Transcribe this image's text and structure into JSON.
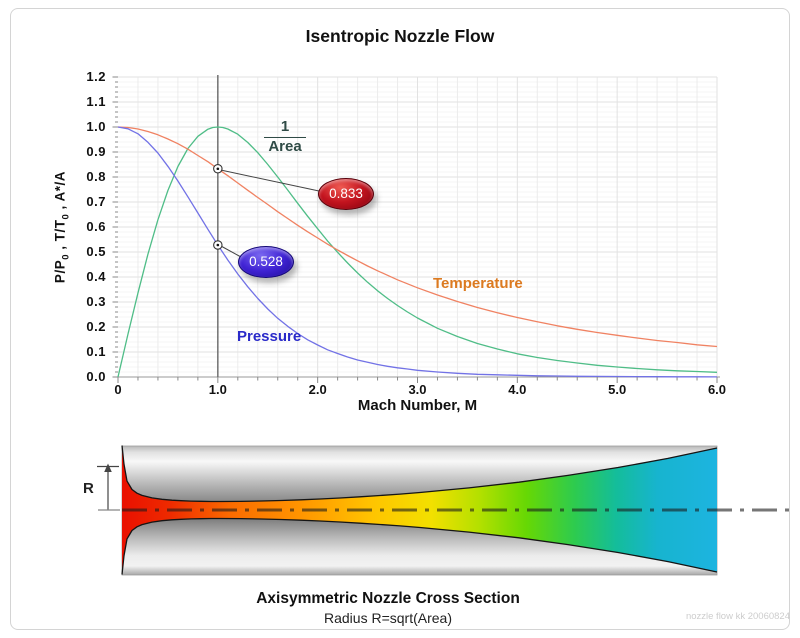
{
  "page": {
    "watermark": "nozzle flow kk 20060824"
  },
  "title": "Isentropic Nozzle Flow",
  "chart": {
    "xlabel": "Mach Number, M",
    "ylabel_parts": {
      "seg1": "P/P",
      "sub1": "0",
      "seg2": " ,  T/T",
      "sub2": "0",
      "seg3": " ,  A*/A"
    },
    "x_ticks": [
      "0",
      "1.0",
      "2.0",
      "3.0",
      "4.0",
      "5.0",
      "6.0"
    ],
    "y_ticks": [
      "0.0",
      "0.1",
      "0.2",
      "0.3",
      "0.4",
      "0.5",
      "0.6",
      "0.7",
      "0.8",
      "0.9",
      "1.0",
      "1.1",
      "1.2"
    ],
    "curve_labels": {
      "area_num": "1",
      "area_den": "Area",
      "temperature": "Temperature",
      "pressure": "Pressure"
    }
  },
  "chart_data": {
    "type": "line",
    "title": "Isentropic Nozzle Flow",
    "xlabel": "Mach Number, M",
    "ylabel": "P/P0 , T/T0 , A*/A",
    "xlim": [
      0,
      6
    ],
    "ylim": [
      0,
      1.2
    ],
    "x_major_tick": 1.0,
    "x_minor_tick": 0.2,
    "y_major_tick": 0.1,
    "y_minor_tick": 0.02,
    "grid": true,
    "guide_line_x": 1.0,
    "series": [
      {
        "name": "1/Area (A*/A)",
        "color": "#4fbd87",
        "points": [
          [
            0,
            0
          ],
          [
            0.02,
            0.035
          ],
          [
            0.05,
            0.086
          ],
          [
            0.1,
            0.172
          ],
          [
            0.2,
            0.337
          ],
          [
            0.3,
            0.491
          ],
          [
            0.4,
            0.629
          ],
          [
            0.5,
            0.746
          ],
          [
            0.6,
            0.842
          ],
          [
            0.7,
            0.914
          ],
          [
            0.8,
            0.963
          ],
          [
            0.9,
            0.991
          ],
          [
            0.95,
            0.998
          ],
          [
            1,
            1.0
          ],
          [
            1.05,
            0.998
          ],
          [
            1.1,
            0.992
          ],
          [
            1.2,
            0.971
          ],
          [
            1.3,
            0.938
          ],
          [
            1.4,
            0.897
          ],
          [
            1.5,
            0.85
          ],
          [
            1.6,
            0.8
          ],
          [
            1.7,
            0.748
          ],
          [
            1.8,
            0.695
          ],
          [
            1.9,
            0.643
          ],
          [
            2,
            0.593
          ],
          [
            2.1,
            0.544
          ],
          [
            2.2,
            0.499
          ],
          [
            2.3,
            0.456
          ],
          [
            2.4,
            0.416
          ],
          [
            2.5,
            0.379
          ],
          [
            2.6,
            0.345
          ],
          [
            2.7,
            0.314
          ],
          [
            2.8,
            0.286
          ],
          [
            2.9,
            0.26
          ],
          [
            3,
            0.236
          ],
          [
            3.2,
            0.195
          ],
          [
            3.4,
            0.162
          ],
          [
            3.6,
            0.134
          ],
          [
            3.8,
            0.112
          ],
          [
            4,
            0.093
          ],
          [
            4.2,
            0.078
          ],
          [
            4.4,
            0.066
          ],
          [
            4.6,
            0.056
          ],
          [
            4.8,
            0.047
          ],
          [
            5,
            0.04
          ],
          [
            5.2,
            0.034
          ],
          [
            5.4,
            0.029
          ],
          [
            5.6,
            0.025
          ],
          [
            5.8,
            0.022
          ],
          [
            6,
            0.019
          ]
        ]
      },
      {
        "name": "Temperature (T/T0)",
        "color": "#f08262",
        "points": [
          [
            0,
            1.0
          ],
          [
            0.1,
            0.998
          ],
          [
            0.2,
            0.992
          ],
          [
            0.3,
            0.982
          ],
          [
            0.4,
            0.969
          ],
          [
            0.5,
            0.952
          ],
          [
            0.6,
            0.933
          ],
          [
            0.7,
            0.911
          ],
          [
            0.8,
            0.886
          ],
          [
            0.9,
            0.861
          ],
          [
            1,
            0.833
          ],
          [
            1.1,
            0.805
          ],
          [
            1.2,
            0.776
          ],
          [
            1.3,
            0.747
          ],
          [
            1.4,
            0.718
          ],
          [
            1.5,
            0.69
          ],
          [
            1.6,
            0.661
          ],
          [
            1.7,
            0.634
          ],
          [
            1.8,
            0.607
          ],
          [
            1.9,
            0.581
          ],
          [
            2,
            0.556
          ],
          [
            2.1,
            0.531
          ],
          [
            2.2,
            0.508
          ],
          [
            2.3,
            0.486
          ],
          [
            2.4,
            0.465
          ],
          [
            2.5,
            0.444
          ],
          [
            2.6,
            0.425
          ],
          [
            2.7,
            0.407
          ],
          [
            2.8,
            0.389
          ],
          [
            2.9,
            0.373
          ],
          [
            3,
            0.357
          ],
          [
            3.2,
            0.328
          ],
          [
            3.4,
            0.302
          ],
          [
            3.6,
            0.278
          ],
          [
            3.8,
            0.257
          ],
          [
            4,
            0.238
          ],
          [
            4.2,
            0.221
          ],
          [
            4.4,
            0.205
          ],
          [
            4.6,
            0.191
          ],
          [
            4.8,
            0.178
          ],
          [
            5,
            0.167
          ],
          [
            5.2,
            0.156
          ],
          [
            5.4,
            0.146
          ],
          [
            5.6,
            0.138
          ],
          [
            5.8,
            0.129
          ],
          [
            6,
            0.122
          ]
        ]
      },
      {
        "name": "Pressure (P/P0)",
        "color": "#7272e6",
        "points": [
          [
            0,
            1.0
          ],
          [
            0.1,
            0.993
          ],
          [
            0.2,
            0.973
          ],
          [
            0.3,
            0.939
          ],
          [
            0.4,
            0.896
          ],
          [
            0.5,
            0.843
          ],
          [
            0.6,
            0.784
          ],
          [
            0.7,
            0.721
          ],
          [
            0.8,
            0.656
          ],
          [
            0.9,
            0.591
          ],
          [
            1,
            0.528
          ],
          [
            1.1,
            0.468
          ],
          [
            1.2,
            0.412
          ],
          [
            1.3,
            0.361
          ],
          [
            1.4,
            0.314
          ],
          [
            1.5,
            0.272
          ],
          [
            1.6,
            0.235
          ],
          [
            1.7,
            0.203
          ],
          [
            1.8,
            0.174
          ],
          [
            1.9,
            0.149
          ],
          [
            2,
            0.128
          ],
          [
            2.1,
            0.109
          ],
          [
            2.2,
            0.094
          ],
          [
            2.3,
            0.08
          ],
          [
            2.4,
            0.068
          ],
          [
            2.5,
            0.059
          ],
          [
            2.6,
            0.05
          ],
          [
            2.7,
            0.043
          ],
          [
            2.8,
            0.037
          ],
          [
            2.9,
            0.032
          ],
          [
            3,
            0.027
          ],
          [
            3.2,
            0.02
          ],
          [
            3.4,
            0.015
          ],
          [
            3.6,
            0.011
          ],
          [
            3.8,
            0.009
          ],
          [
            4,
            0.007
          ],
          [
            4.2,
            0.005
          ],
          [
            4.4,
            0.004
          ],
          [
            4.6,
            0.003
          ],
          [
            4.8,
            0.0024
          ],
          [
            5,
            0.0019
          ],
          [
            5.2,
            0.0015
          ],
          [
            5.4,
            0.0012
          ],
          [
            5.6,
            0.001
          ],
          [
            5.8,
            0.0008
          ],
          [
            6,
            0.0006
          ]
        ]
      }
    ],
    "annotations": [
      {
        "label": "0.833",
        "x": 1.0,
        "y": 0.833,
        "series": "Temperature (T/T0)",
        "badge_color": "#c3141f"
      },
      {
        "label": "0.528",
        "x": 1.0,
        "y": 0.528,
        "series": "Pressure (P/P0)",
        "badge_color": "#4023d4"
      }
    ]
  },
  "nozzle": {
    "caption_line1": "Axisymmetric Nozzle Cross Section",
    "caption_line2": "Radius R=sqrt(Area)",
    "radius_label": "R",
    "flow_stops": [
      [
        0,
        "#ea1000"
      ],
      [
        0.08,
        "#ee2a00"
      ],
      [
        0.18,
        "#fb6a00"
      ],
      [
        0.3,
        "#ff9500"
      ],
      [
        0.42,
        "#ffc400"
      ],
      [
        0.52,
        "#f2e000"
      ],
      [
        0.6,
        "#b4e000"
      ],
      [
        0.68,
        "#66d804"
      ],
      [
        0.76,
        "#2ecb4e"
      ],
      [
        0.83,
        "#14bd9a"
      ],
      [
        0.9,
        "#17b4cf"
      ],
      [
        1,
        "#1db4e0"
      ]
    ],
    "body_stops": [
      [
        0,
        "#b9b9b9"
      ],
      [
        0.05,
        "#e2e2e2"
      ],
      [
        0.12,
        "#f8f8f8"
      ],
      [
        0.28,
        "#bdbdbd"
      ],
      [
        0.45,
        "#828282"
      ],
      [
        0.55,
        "#787878"
      ],
      [
        0.7,
        "#b5b5b5"
      ],
      [
        0.85,
        "#ececec"
      ],
      [
        0.93,
        "#f2f2f2"
      ],
      [
        1,
        "#a8a8a8"
      ]
    ],
    "profile": [
      [
        122,
        64.5
      ],
      [
        124,
        45.7
      ],
      [
        127,
        28.9
      ],
      [
        132,
        20.5
      ],
      [
        137,
        16.8
      ],
      [
        142,
        14.6
      ],
      [
        152,
        12.1
      ],
      [
        162,
        10.7
      ],
      [
        172,
        9.8
      ],
      [
        181,
        9.3
      ],
      [
        191,
        8.9
      ],
      [
        201,
        8.7
      ],
      [
        211,
        8.5
      ],
      [
        221,
        8.5
      ],
      [
        241,
        8.6
      ],
      [
        261,
        9.0
      ],
      [
        281,
        9.5
      ],
      [
        301,
        10.2
      ],
      [
        320,
        11.0
      ],
      [
        340,
        12.0
      ],
      [
        360,
        13.2
      ],
      [
        380,
        14.5
      ],
      [
        400,
        15.9
      ],
      [
        420,
        17.5
      ],
      [
        469,
        22.1
      ],
      [
        519,
        27.8
      ],
      [
        568,
        34.6
      ],
      [
        618,
        42.5
      ],
      [
        668,
        51.6
      ],
      [
        717,
        62.0
      ]
    ]
  }
}
